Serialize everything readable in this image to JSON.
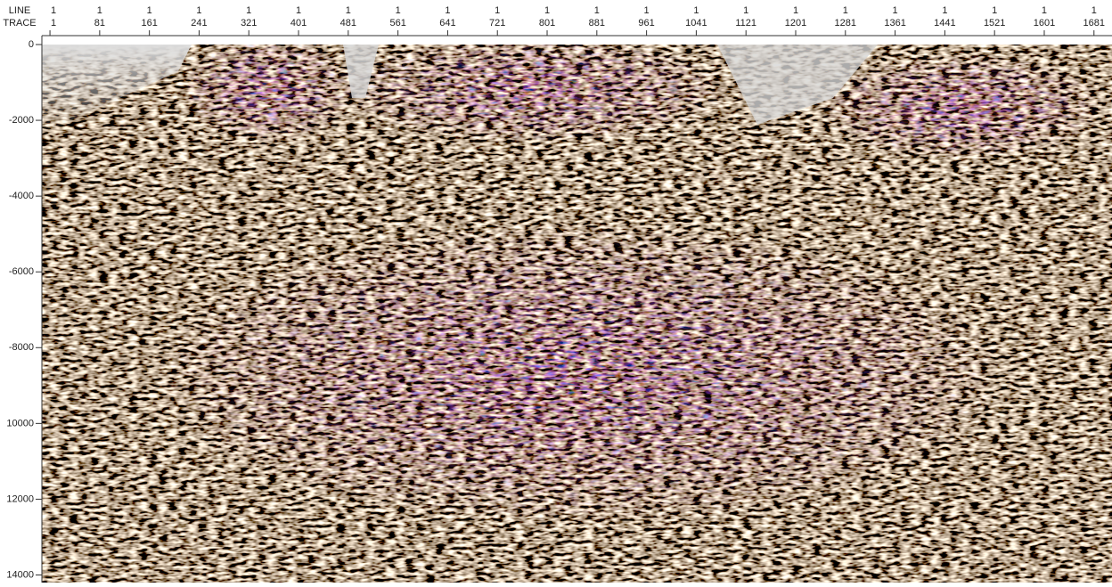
{
  "chart_data": {
    "type": "seismic-section",
    "x_header_labels": [
      "LINE",
      "TRACE"
    ],
    "line_numbers": [
      1,
      1,
      1,
      1,
      1,
      1,
      1,
      1,
      1,
      1,
      1,
      1,
      1,
      1,
      1,
      1,
      1,
      1,
      1,
      1,
      1,
      1
    ],
    "xticks": [
      1,
      81,
      161,
      241,
      321,
      401,
      481,
      561,
      641,
      721,
      801,
      881,
      961,
      1041,
      1121,
      1201,
      1281,
      1361,
      1441,
      1521,
      1601,
      1681
    ],
    "xlim": [
      -12,
      1710
    ],
    "yticks": [
      0,
      -2000,
      -4000,
      -6000,
      -8000,
      {
        "value": -10000,
        "label": "10000"
      },
      {
        "value": -12000,
        "label": "12000"
      },
      {
        "value": -14000,
        "label": "14000"
      }
    ],
    "ylim": [
      -14200,
      0
    ]
  }
}
